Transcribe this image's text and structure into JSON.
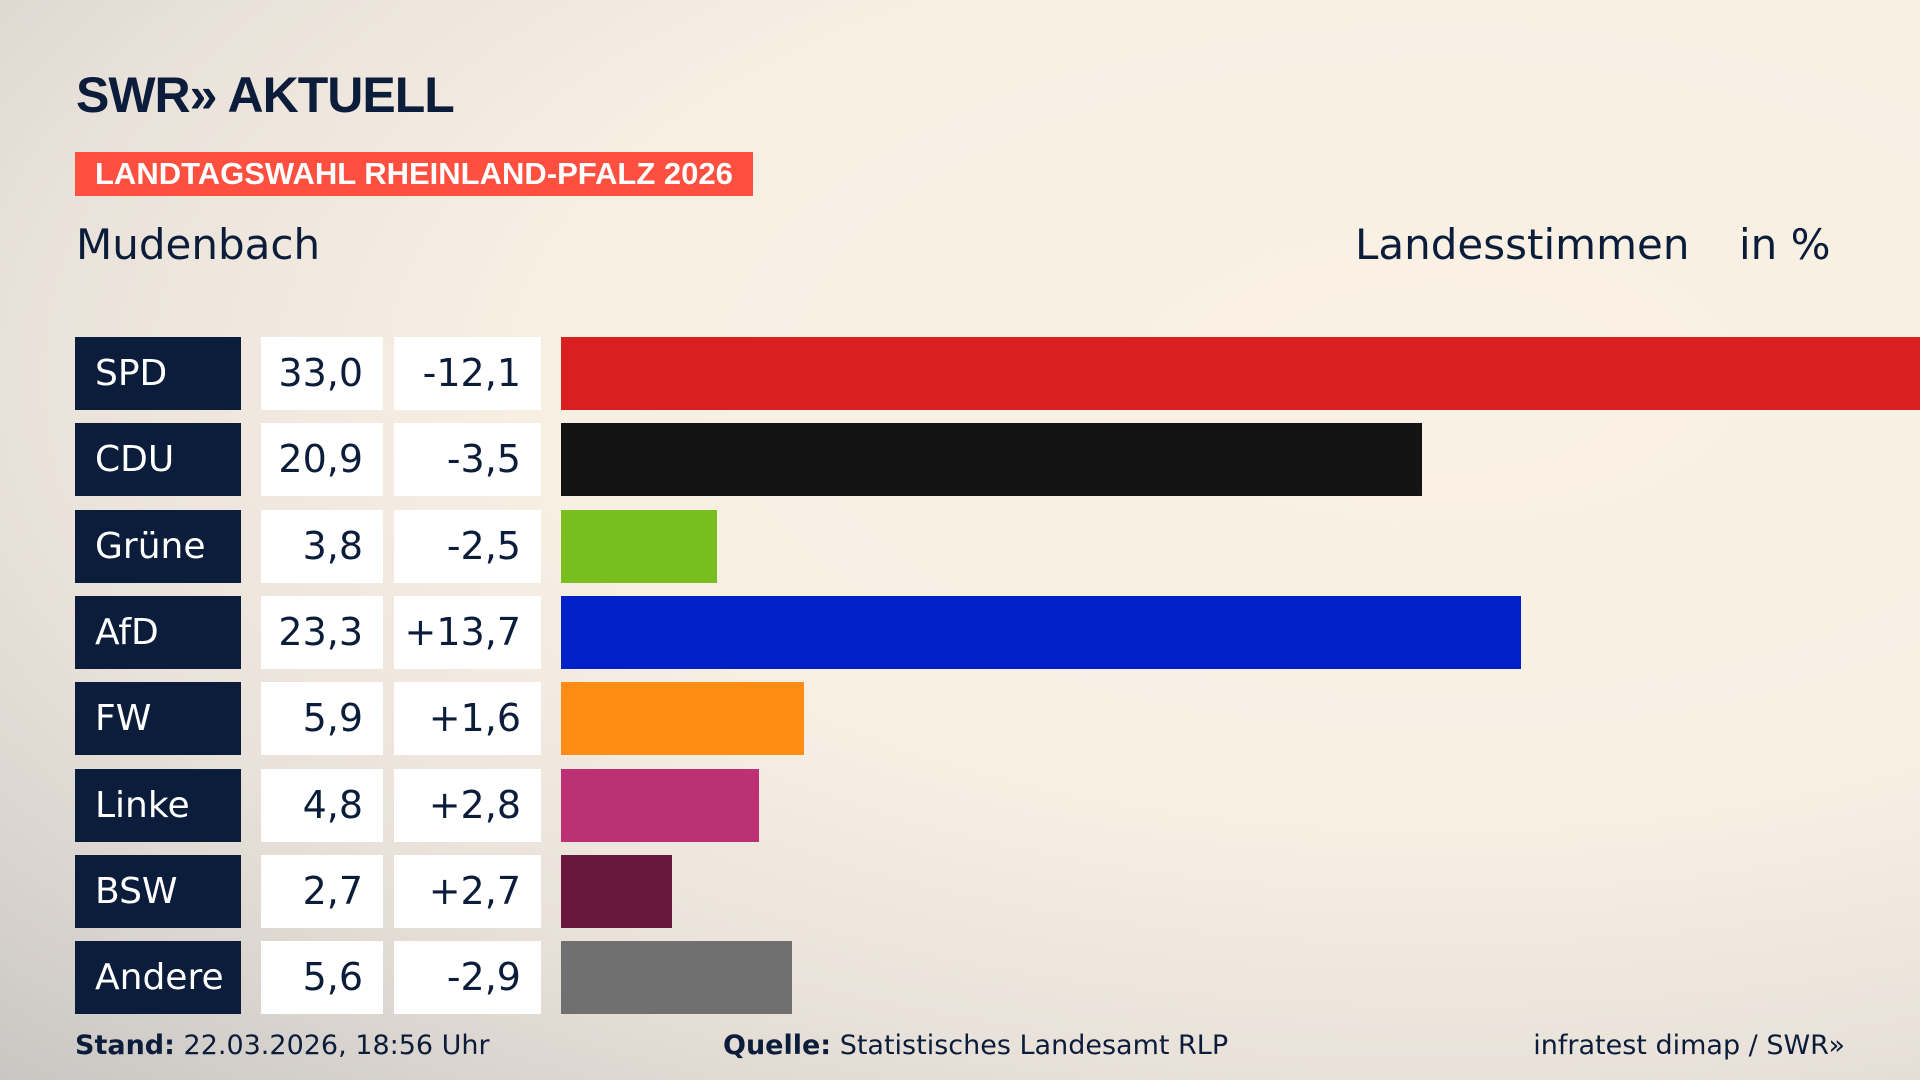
{
  "header": {
    "logo": "SWR» AKTUELL",
    "banner": "LANDTAGSWAHL RHEINLAND-PFALZ 2026",
    "place": "Mudenbach",
    "metric": "Landesstimmen",
    "unit": "in %"
  },
  "chart_data": {
    "type": "bar",
    "orientation": "horizontal",
    "categories": [
      "SPD",
      "CDU",
      "Grüne",
      "AfD",
      "FW",
      "Linke",
      "BSW",
      "Andere"
    ],
    "values": [
      33.0,
      20.9,
      3.8,
      23.3,
      5.9,
      4.8,
      2.7,
      5.6
    ],
    "value_labels": [
      "33,0",
      "20,9",
      "3,8",
      "23,3",
      "5,9",
      "4,8",
      "2,7",
      "5,6"
    ],
    "diff_labels": [
      "-12,1",
      "-3,5",
      "-2,5",
      "+13,7",
      "+1,6",
      "+2,8",
      "+2,7",
      "-2,9"
    ],
    "colors": [
      "#d82020",
      "#131313",
      "#78be1e",
      "#0020c8",
      "#ff8c14",
      "#bc3074",
      "#6a173e",
      "#707070"
    ],
    "grid": false
  },
  "footer": {
    "stand_label": "Stand:",
    "stand": "22.03.2026, 18:56 Uhr",
    "source_label": "Quelle:",
    "source": "Statistisches Landesamt RLP",
    "credit": "infratest dimap / SWR»"
  }
}
